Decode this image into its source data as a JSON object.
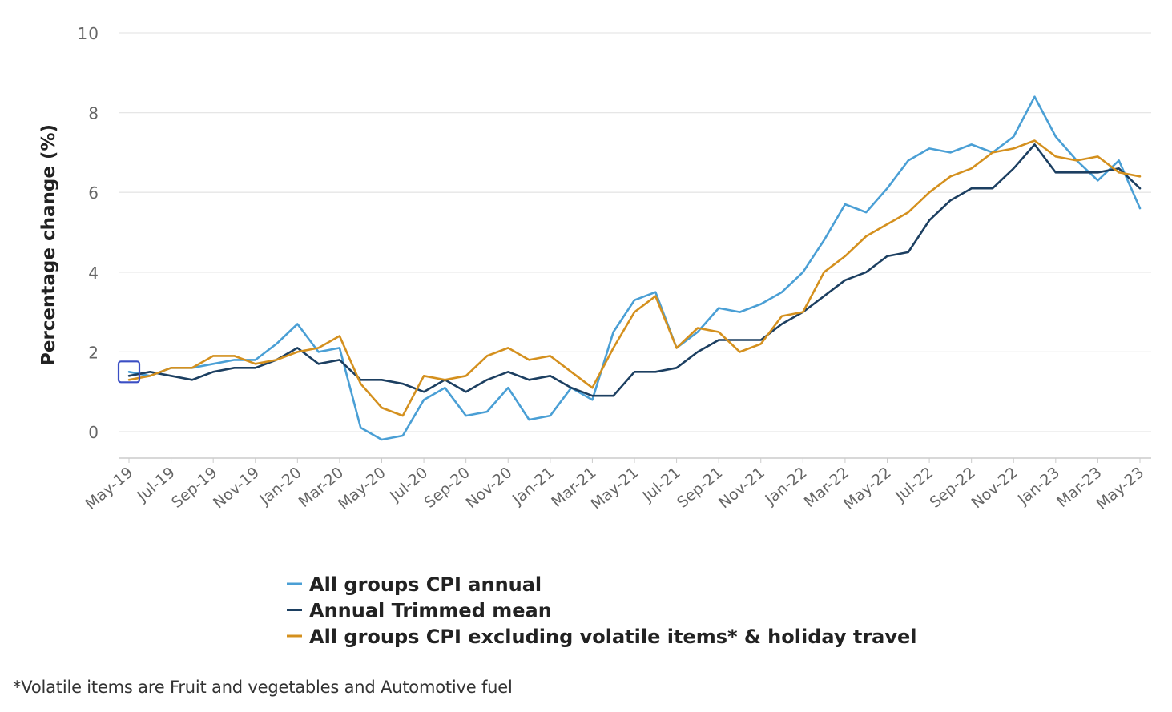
{
  "chart_data": {
    "type": "line",
    "title": "",
    "ylabel": "Percentage change (%)",
    "xlabel": "",
    "ylim": [
      -0.6,
      10
    ],
    "yticks": [
      0,
      2,
      4,
      6,
      8,
      10
    ],
    "grid": true,
    "x": [
      "May-19",
      "Jun-19",
      "Jul-19",
      "Aug-19",
      "Sep-19",
      "Oct-19",
      "Nov-19",
      "Dec-19",
      "Jan-20",
      "Feb-20",
      "Mar-20",
      "Apr-20",
      "May-20",
      "Jun-20",
      "Jul-20",
      "Aug-20",
      "Sep-20",
      "Oct-20",
      "Nov-20",
      "Dec-20",
      "Jan-21",
      "Feb-21",
      "Mar-21",
      "Apr-21",
      "May-21",
      "Jun-21",
      "Jul-21",
      "Aug-21",
      "Sep-21",
      "Oct-21",
      "Nov-21",
      "Dec-21",
      "Jan-22",
      "Feb-22",
      "Mar-22",
      "Apr-22",
      "May-22",
      "Jun-22",
      "Jul-22",
      "Aug-22",
      "Sep-22",
      "Oct-22",
      "Nov-22",
      "Dec-22",
      "Jan-23",
      "Feb-23",
      "Mar-23",
      "Apr-23",
      "May-23"
    ],
    "tick_labels": [
      "May-19",
      "Jul-19",
      "Sep-19",
      "Nov-19",
      "Jan-20",
      "Mar-20",
      "May-20",
      "Jul-20",
      "Sep-20",
      "Nov-20",
      "Jan-21",
      "Mar-21",
      "May-21",
      "Jul-21",
      "Sep-21",
      "Nov-21",
      "Jan-22",
      "Mar-22",
      "May-22",
      "Jul-22",
      "Sep-22",
      "Nov-22",
      "Jan-23",
      "Mar-23",
      "May-23"
    ],
    "series": [
      {
        "name": "All groups CPI annual",
        "color": "#4a9fd5",
        "values": [
          1.5,
          1.4,
          1.6,
          1.6,
          1.7,
          1.8,
          1.8,
          2.2,
          2.7,
          2.0,
          2.1,
          0.1,
          -0.2,
          -0.1,
          0.8,
          1.1,
          0.4,
          0.5,
          1.1,
          0.3,
          0.4,
          1.1,
          0.8,
          2.5,
          3.3,
          3.5,
          2.1,
          2.5,
          3.1,
          3.0,
          3.2,
          3.5,
          4.0,
          4.8,
          5.7,
          5.5,
          6.1,
          6.8,
          7.1,
          7.0,
          7.2,
          7.0,
          7.4,
          8.4,
          7.4,
          6.8,
          6.3,
          6.8,
          5.6
        ]
      },
      {
        "name": "Annual Trimmed mean",
        "color": "#1c3f61",
        "values": [
          1.4,
          1.5,
          1.4,
          1.3,
          1.5,
          1.6,
          1.6,
          1.8,
          2.1,
          1.7,
          1.8,
          1.3,
          1.3,
          1.2,
          1.0,
          1.3,
          1.0,
          1.3,
          1.5,
          1.3,
          1.4,
          1.1,
          0.9,
          0.9,
          1.5,
          1.5,
          1.6,
          2.0,
          2.3,
          2.3,
          2.3,
          2.7,
          3.0,
          3.4,
          3.8,
          4.0,
          4.4,
          4.5,
          5.3,
          5.8,
          6.1,
          6.1,
          6.6,
          7.2,
          6.5,
          6.5,
          6.5,
          6.6,
          6.1
        ]
      },
      {
        "name": "All groups CPI excluding volatile items* & holiday travel",
        "color": "#d4901e",
        "values": [
          1.3,
          1.4,
          1.6,
          1.6,
          1.9,
          1.9,
          1.7,
          1.8,
          2.0,
          2.1,
          2.4,
          1.2,
          0.6,
          0.4,
          1.4,
          1.3,
          1.4,
          1.9,
          2.1,
          1.8,
          1.9,
          1.5,
          1.1,
          2.1,
          3.0,
          3.4,
          2.1,
          2.6,
          2.5,
          2.0,
          2.2,
          2.9,
          3.0,
          4.0,
          4.4,
          4.9,
          5.2,
          5.5,
          6.0,
          6.4,
          6.6,
          7.0,
          7.1,
          7.3,
          6.9,
          6.8,
          6.9,
          6.5,
          6.4
        ]
      }
    ],
    "legend_position": "bottom"
  },
  "footnote": "*Volatile items are Fruit and vegetables and Automotive fuel",
  "colors": {
    "grid": "#e6e6e6",
    "axis": "#cccccc",
    "tick_text": "#666666",
    "label_text": "#222222",
    "highlight_box": "#3b4fc4"
  }
}
